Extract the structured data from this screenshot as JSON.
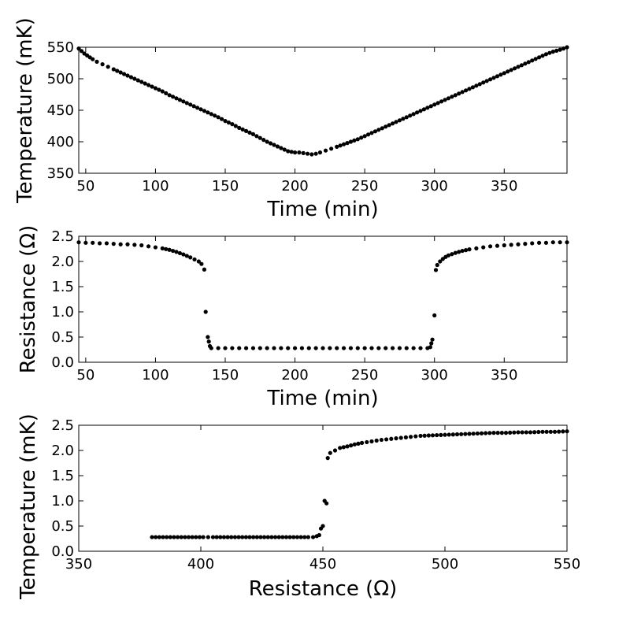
{
  "chart_data": [
    {
      "type": "scatter",
      "xlabel": "Time (min)",
      "ylabel": "Temperature (mK)",
      "xlim": [
        45,
        395
      ],
      "ylim": [
        350,
        550
      ],
      "xticks": [
        50,
        100,
        150,
        200,
        250,
        300,
        350
      ],
      "yticks": [
        350,
        400,
        450,
        500,
        550
      ],
      "series": [
        {
          "x": [
            45,
            47,
            49,
            51,
            53,
            55,
            58,
            62,
            66,
            70,
            75,
            80,
            85,
            90,
            95,
            100,
            105,
            110,
            115,
            120,
            125,
            130,
            135,
            140,
            145,
            150,
            155,
            160,
            165,
            170,
            175,
            180,
            185,
            190,
            195,
            200,
            203,
            206,
            209,
            212,
            215,
            218,
            222,
            226,
            230,
            235,
            240,
            245,
            250,
            255,
            260,
            265,
            270,
            275,
            280,
            285,
            290,
            295,
            300,
            305,
            310,
            315,
            320,
            325,
            330,
            335,
            340,
            345,
            350,
            355,
            360,
            365,
            370,
            375,
            380,
            385,
            390,
            395
          ],
          "y": [
            548,
            544,
            540,
            537,
            534,
            531,
            527,
            523,
            519,
            515,
            510,
            505,
            500,
            495,
            490,
            485,
            480,
            474,
            469,
            464,
            459,
            454,
            449,
            444,
            439,
            433,
            428,
            422,
            417,
            412,
            406,
            400,
            395,
            390,
            385,
            383,
            383,
            382,
            381,
            380,
            381,
            383,
            386,
            389,
            392,
            396,
            400,
            404,
            409,
            414,
            419,
            424,
            429,
            434,
            439,
            444,
            449,
            454,
            459,
            464,
            469,
            474,
            479,
            484,
            489,
            494,
            499,
            504,
            509,
            514,
            519,
            524,
            529,
            534,
            539,
            543,
            546,
            550
          ]
        }
      ]
    },
    {
      "type": "scatter",
      "xlabel": "Time (min)",
      "ylabel": "Resistance (Ω)",
      "xlim": [
        45,
        395
      ],
      "ylim": [
        0.0,
        2.5
      ],
      "xticks": [
        50,
        100,
        150,
        200,
        250,
        300,
        350
      ],
      "yticks": [
        0.0,
        0.5,
        1.0,
        1.5,
        2.0,
        2.5
      ],
      "yticklabels": [
        "0.0",
        "0.5",
        "1.0",
        "1.5",
        "2.0",
        "2.5"
      ],
      "series": [
        {
          "x": [
            45,
            50,
            55,
            60,
            65,
            70,
            75,
            80,
            85,
            90,
            95,
            100,
            105,
            110,
            115,
            120,
            125,
            128,
            131,
            133,
            135,
            136,
            137.5,
            139,
            140,
            145,
            150,
            155,
            160,
            165,
            170,
            175,
            180,
            185,
            190,
            195,
            200,
            205,
            210,
            215,
            220,
            225,
            230,
            235,
            240,
            245,
            250,
            255,
            260,
            265,
            270,
            275,
            280,
            285,
            290,
            295,
            297,
            298.5,
            300,
            301,
            302,
            304,
            306,
            308,
            310,
            315,
            320,
            325,
            330,
            335,
            340,
            345,
            350,
            355,
            360,
            365,
            370,
            375,
            380,
            385,
            390,
            395
          ],
          "y": [
            2.38,
            2.37,
            2.37,
            2.36,
            2.36,
            2.35,
            2.34,
            2.34,
            2.33,
            2.32,
            2.3,
            2.28,
            2.26,
            2.23,
            2.19,
            2.14,
            2.08,
            2.04,
            2.0,
            1.95,
            1.84,
            1.0,
            0.5,
            0.32,
            0.28,
            0.28,
            0.28,
            0.28,
            0.28,
            0.28,
            0.28,
            0.28,
            0.28,
            0.28,
            0.28,
            0.28,
            0.28,
            0.28,
            0.28,
            0.28,
            0.28,
            0.28,
            0.28,
            0.28,
            0.28,
            0.28,
            0.28,
            0.28,
            0.28,
            0.28,
            0.28,
            0.28,
            0.28,
            0.28,
            0.28,
            0.28,
            0.3,
            0.45,
            0.93,
            1.83,
            1.93,
            2.0,
            2.05,
            2.09,
            2.12,
            2.17,
            2.21,
            2.24,
            2.26,
            2.28,
            2.3,
            2.31,
            2.32,
            2.33,
            2.34,
            2.35,
            2.36,
            2.37,
            2.37,
            2.38,
            2.38,
            2.38
          ]
        }
      ]
    },
    {
      "type": "scatter",
      "xlabel": "Resistance (Ω)",
      "ylabel": "Temperature (mK)",
      "xlim": [
        350,
        550
      ],
      "ylim": [
        0.0,
        2.5
      ],
      "xticks": [
        350,
        400,
        450,
        500,
        550
      ],
      "yticks": [
        0.0,
        0.5,
        1.0,
        1.5,
        2.0,
        2.5
      ],
      "yticklabels": [
        "0.0",
        "0.5",
        "1.0",
        "1.5",
        "2.0",
        "2.5"
      ],
      "series": [
        {
          "x": [
            380,
            383,
            386,
            389,
            392,
            395,
            398,
            401,
            405,
            408,
            411,
            414,
            417,
            420,
            423,
            426,
            429,
            432,
            435,
            438,
            441,
            444,
            446,
            447.5,
            448.5,
            449.2,
            450,
            450.7,
            451.5,
            452,
            453,
            455,
            457,
            460,
            463,
            466,
            470,
            474,
            478,
            482,
            486,
            490,
            495,
            500,
            505,
            510,
            515,
            520,
            525,
            530,
            535,
            540,
            545,
            550
          ],
          "y": [
            0.28,
            0.28,
            0.28,
            0.28,
            0.28,
            0.28,
            0.28,
            0.28,
            0.28,
            0.28,
            0.28,
            0.28,
            0.28,
            0.28,
            0.28,
            0.28,
            0.28,
            0.28,
            0.28,
            0.28,
            0.28,
            0.28,
            0.28,
            0.3,
            0.32,
            0.45,
            0.5,
            1.0,
            0.95,
            1.85,
            1.95,
            2.0,
            2.05,
            2.08,
            2.12,
            2.15,
            2.18,
            2.21,
            2.23,
            2.25,
            2.27,
            2.29,
            2.3,
            2.31,
            2.32,
            2.33,
            2.34,
            2.35,
            2.35,
            2.36,
            2.36,
            2.37,
            2.37,
            2.38
          ]
        }
      ]
    }
  ]
}
